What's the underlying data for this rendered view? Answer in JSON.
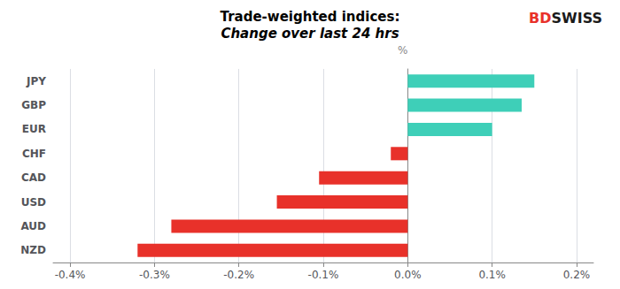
{
  "chart_data": {
    "type": "bar",
    "orientation": "horizontal",
    "title": "Trade-weighted indices:",
    "subtitle": "Change over last 24 hrs",
    "ylabel": "%",
    "categories": [
      "NZD",
      "AUD",
      "USD",
      "CAD",
      "CHF",
      "EUR",
      "GBP",
      "JPY"
    ],
    "values": [
      -0.32,
      -0.28,
      -0.155,
      -0.105,
      -0.02,
      0.1,
      0.135,
      0.15
    ],
    "colors": [
      "#e8312a",
      "#e8312a",
      "#e8312a",
      "#e8312a",
      "#e8312a",
      "#3ecfb8",
      "#3ecfb8",
      "#3ecfb8"
    ],
    "xlim": [
      -0.42,
      0.22
    ],
    "xticks": [
      {
        "value": -0.4,
        "label": "-0.4%"
      },
      {
        "value": -0.3,
        "label": "-0.3%"
      },
      {
        "value": -0.2,
        "label": "-0.2%"
      },
      {
        "value": -0.1,
        "label": "-0.1%"
      },
      {
        "value": 0.0,
        "label": "0.0%"
      },
      {
        "value": 0.1,
        "label": "0.1%"
      },
      {
        "value": 0.2,
        "label": "0.2%"
      }
    ],
    "grid": true,
    "annotations": [
      {
        "text": "BD",
        "color": "#e8312a"
      },
      {
        "text": "SWISS",
        "color": "#1a1a1a"
      }
    ]
  }
}
